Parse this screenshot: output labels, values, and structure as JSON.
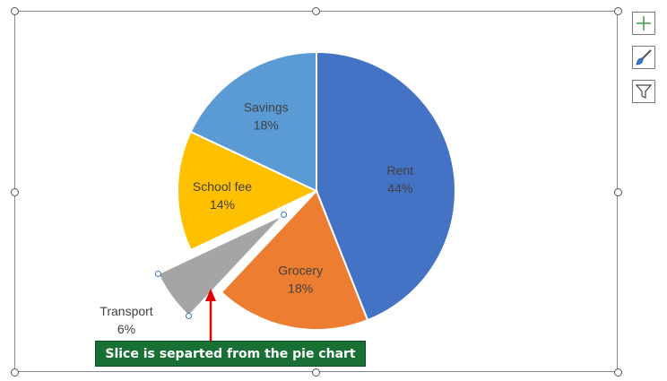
{
  "chart_data": {
    "type": "pie",
    "categories": [
      "Rent",
      "Grocery",
      "Transport",
      "School fee",
      "Savings"
    ],
    "values": [
      44,
      18,
      6,
      14,
      18
    ],
    "value_labels": [
      "44%",
      "18%",
      "6%",
      "14%",
      "18%"
    ],
    "colors": [
      "#4472c4",
      "#ed7d31",
      "#a5a5a5",
      "#ffc000",
      "#5b9bd5"
    ],
    "exploded_slice": "Transport",
    "legend": "none",
    "data_labels": "category and percentage"
  },
  "annotation": {
    "callout_text": "Slice is separted from the pie chart",
    "callout_bg": "#187034",
    "arrow_color": "#e00000"
  },
  "side_buttons": {
    "add_element_icon": "plus-icon",
    "style_icon": "paintbrush-icon",
    "filter_icon": "funnel-icon"
  }
}
